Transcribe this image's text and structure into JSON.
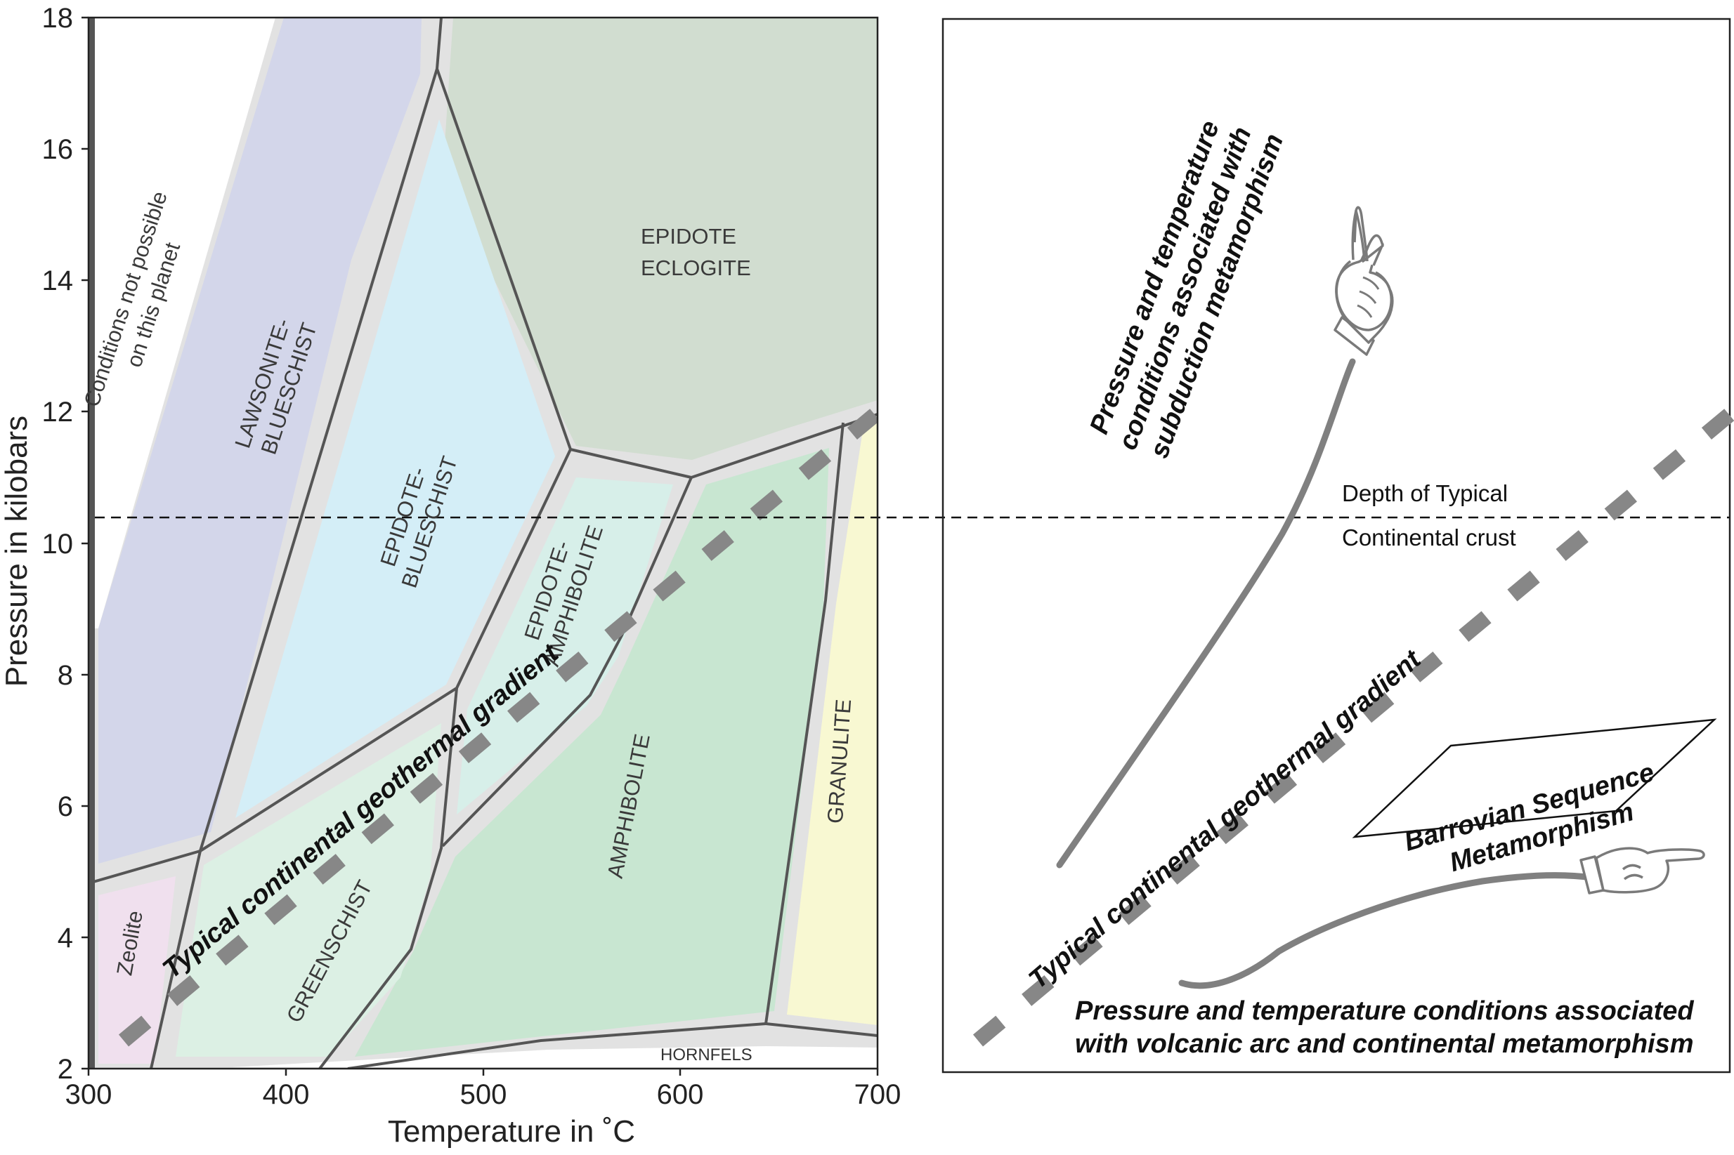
{
  "axes": {
    "y_title": "Pressure in kilobars",
    "x_title": "Temperature in ˚C",
    "y_ticks": [
      "2",
      "4",
      "6",
      "8",
      "10",
      "12",
      "14",
      "16",
      "18"
    ],
    "x_ticks": [
      "300",
      "400",
      "500",
      "600",
      "700"
    ]
  },
  "facies": {
    "conditions_line1": "Conditions not possible",
    "conditions_line2": "on this planet",
    "lawsonite_line1": "LAWSONITE-",
    "lawsonite_line2": "BLUESCHIST",
    "epidote_eclogite_line1": "EPIDOTE",
    "epidote_eclogite_line2": "ECLOGITE",
    "epidote_blueschist_line1": "EPIDOTE-",
    "epidote_blueschist_line2": "BLUESCHIST",
    "epidote_amphibolite_line1": "EPIDOTE-",
    "epidote_amphibolite_line2": "AMPHIBOLITE",
    "amphibolite": "AMPHIBOLITE",
    "granulite": "GRANULITE",
    "greenschist": "GREENSCHIST",
    "zeolite": "Zeolite",
    "hornfels": "HORNFELS"
  },
  "left_gradient_label": "Typical continental geothermal gradient",
  "right_panel": {
    "subduction_line1": "Pressure and  temperature",
    "subduction_line2": "conditions associated with",
    "subduction_line3": "subduction metamorphism",
    "depth_line1": "Depth of Typical",
    "depth_line2": "Continental crust",
    "gradient_label": "Typical continental geothermal gradient",
    "barrovian_line1": "Barrovian Sequence",
    "barrovian_line2": "Metamorphism",
    "volcanic_line1": "Pressure and temperature  conditions associated",
    "volcanic_line2": "with  volcanic arc and continental metamorphism"
  },
  "colors": {
    "lawsonite_blueschist": "#d3d6ea",
    "epidote_eclogite": "#d1ddd0",
    "epidote_blueschist": "#d4eef7",
    "epidote_amphibolite": "#d7efe9",
    "amphibolite": "#c8e6d1",
    "greenschist": "#dcf0e4",
    "zeolite": "#f0e0ee",
    "granulite": "#f8f8d2",
    "boundary_band": "#e2e2e2",
    "boundary_line": "#555555",
    "gradient_dash": "#878787"
  }
}
